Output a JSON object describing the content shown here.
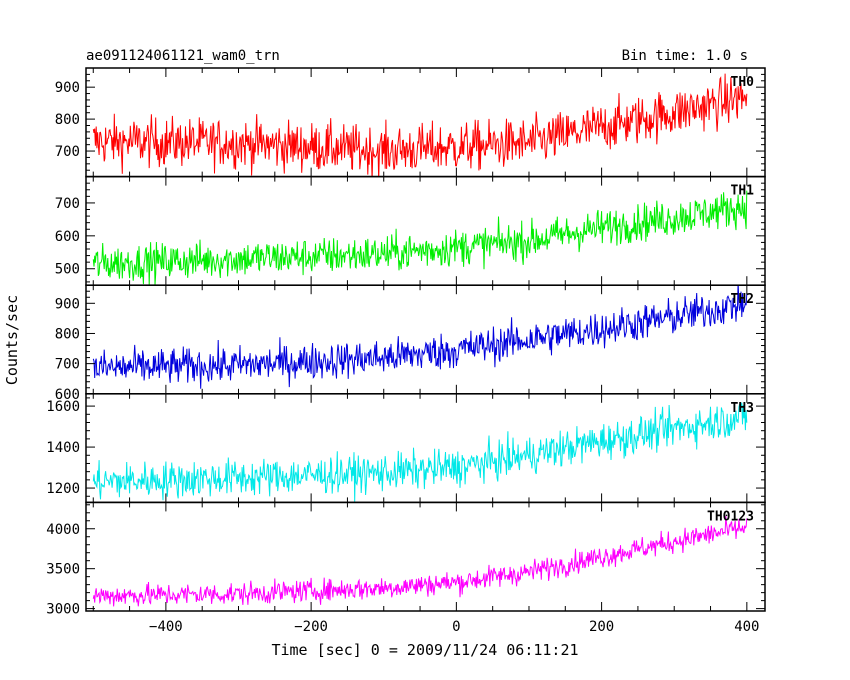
{
  "header": {
    "title": "ae091124061121_wam0_trn",
    "bin_time": "Bin time: 1.0 s"
  },
  "chart_data": {
    "type": "line",
    "title": "ae091124061121_wam0_trn",
    "xlabel": "Time [sec] 0 = 2009/11/24 06:11:21",
    "ylabel": "Counts/sec",
    "xlim": [
      -510,
      425
    ],
    "x_data_range": [
      -500,
      400
    ],
    "x_ticks": [
      -400,
      -200,
      0,
      200,
      400
    ],
    "x_tick_labels": [
      "−400",
      "−200",
      "0",
      "200",
      "400"
    ],
    "grid": false,
    "panels": [
      {
        "name": "TH0",
        "color": "#ff0000",
        "ylim": [
          620,
          960
        ],
        "y_ticks": [
          700,
          800,
          900
        ],
        "y_tick_labels": [
          "700",
          "800",
          "900"
        ],
        "trend": [
          [
            -500,
            730
          ],
          [
            -300,
            725
          ],
          [
            -100,
            700
          ],
          [
            100,
            725
          ],
          [
            200,
            775
          ],
          [
            300,
            820
          ],
          [
            400,
            870
          ]
        ],
        "scatter": 38
      },
      {
        "name": "TH1",
        "color": "#00ee00",
        "ylim": [
          450,
          780
        ],
        "y_ticks": [
          500,
          600,
          700
        ],
        "y_tick_labels": [
          "500",
          "600",
          "700"
        ],
        "trend": [
          [
            -500,
            515
          ],
          [
            -300,
            530
          ],
          [
            -100,
            545
          ],
          [
            0,
            565
          ],
          [
            100,
            585
          ],
          [
            200,
            625
          ],
          [
            300,
            655
          ],
          [
            400,
            690
          ]
        ],
        "scatter": 28
      },
      {
        "name": "TH2",
        "color": "#0000dd",
        "ylim": [
          600,
          960
        ],
        "y_ticks": [
          600,
          700,
          800,
          900
        ],
        "y_tick_labels": [
          "600",
          "700",
          "800",
          "900"
        ],
        "trend": [
          [
            -500,
            685
          ],
          [
            -300,
            695
          ],
          [
            -100,
            720
          ],
          [
            0,
            745
          ],
          [
            100,
            780
          ],
          [
            200,
            815
          ],
          [
            300,
            855
          ],
          [
            400,
            900
          ]
        ],
        "scatter": 30
      },
      {
        "name": "TH3",
        "color": "#00e8e8",
        "ylim": [
          1130,
          1660
        ],
        "y_ticks": [
          1200,
          1400,
          1600
        ],
        "y_tick_labels": [
          "1200",
          "1400",
          "1600"
        ],
        "trend": [
          [
            -500,
            1230
          ],
          [
            -300,
            1250
          ],
          [
            -100,
            1275
          ],
          [
            0,
            1300
          ],
          [
            100,
            1360
          ],
          [
            200,
            1430
          ],
          [
            300,
            1490
          ],
          [
            400,
            1550
          ]
        ],
        "scatter": 45
      },
      {
        "name": "TH0123",
        "color": "#ff00ff",
        "ylim": [
          2970,
          4330
        ],
        "y_ticks": [
          3000,
          3500,
          4000
        ],
        "y_tick_labels": [
          "3000",
          "3500",
          "4000"
        ],
        "trend": [
          [
            -500,
            3160
          ],
          [
            -300,
            3185
          ],
          [
            -100,
            3260
          ],
          [
            0,
            3330
          ],
          [
            100,
            3460
          ],
          [
            200,
            3650
          ],
          [
            300,
            3840
          ],
          [
            400,
            4020
          ]
        ],
        "scatter": 70
      }
    ]
  }
}
